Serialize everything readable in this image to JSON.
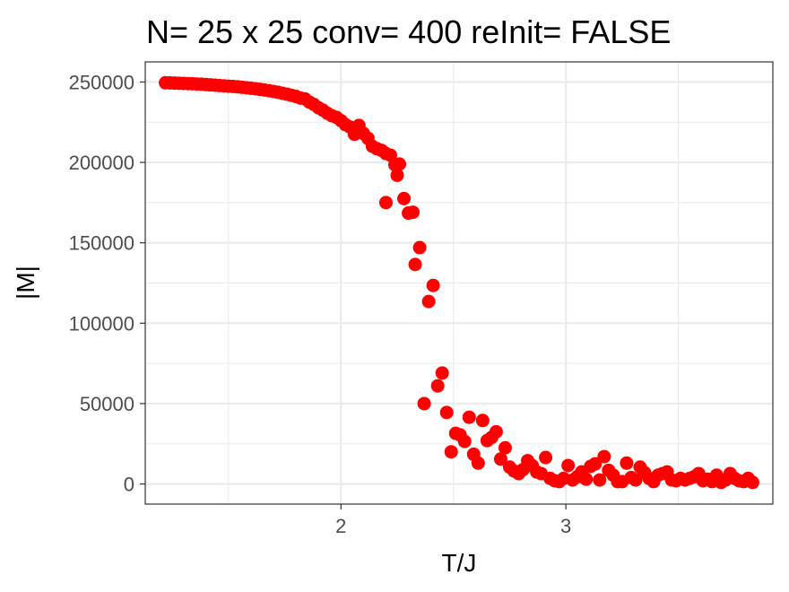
{
  "chart_data": {
    "type": "scatter",
    "title": "N= 25 x 25  conv= 400  reInit= FALSE",
    "xlabel": "T/J",
    "ylabel": "|M|",
    "xlim": [
      1.13,
      3.92
    ],
    "ylim": [
      -12500,
      262500
    ],
    "x_ticks": [
      2,
      3
    ],
    "x_tick_labels": [
      "2",
      "3"
    ],
    "x_minor_ticks": [
      1.5,
      2.5,
      3.5
    ],
    "y_ticks": [
      0,
      50000,
      100000,
      150000,
      200000,
      250000
    ],
    "y_tick_labels": [
      "0",
      "50000",
      "100000",
      "150000",
      "200000",
      "250000"
    ],
    "y_minor_ticks": [
      25000,
      75000,
      125000,
      175000,
      225000
    ],
    "grid": true,
    "legend": "none",
    "point_color": "#ff0000",
    "series": [
      {
        "points": [
          [
            1.22,
            249500
          ],
          [
            1.24,
            249400
          ],
          [
            1.26,
            249300
          ],
          [
            1.28,
            249200
          ],
          [
            1.3,
            249100
          ],
          [
            1.32,
            249000
          ],
          [
            1.34,
            248900
          ],
          [
            1.36,
            248700
          ],
          [
            1.38,
            248600
          ],
          [
            1.4,
            248400
          ],
          [
            1.42,
            248200
          ],
          [
            1.44,
            248000
          ],
          [
            1.46,
            247800
          ],
          [
            1.48,
            247600
          ],
          [
            1.5,
            247400
          ],
          [
            1.52,
            247200
          ],
          [
            1.54,
            247000
          ],
          [
            1.56,
            246700
          ],
          [
            1.58,
            246400
          ],
          [
            1.6,
            246100
          ],
          [
            1.62,
            245800
          ],
          [
            1.64,
            245400
          ],
          [
            1.66,
            245000
          ],
          [
            1.68,
            244600
          ],
          [
            1.7,
            244100
          ],
          [
            1.72,
            243600
          ],
          [
            1.74,
            243000
          ],
          [
            1.76,
            242400
          ],
          [
            1.78,
            241700
          ],
          [
            1.8,
            241000
          ],
          [
            1.82,
            240000
          ],
          [
            1.84,
            239500
          ],
          [
            1.86,
            237500
          ],
          [
            1.88,
            236000
          ],
          [
            1.9,
            234000
          ],
          [
            1.92,
            232500
          ],
          [
            1.94,
            230500
          ],
          [
            1.96,
            229000
          ],
          [
            1.98,
            228000
          ],
          [
            2.0,
            226000
          ],
          [
            2.02,
            223500
          ],
          [
            2.04,
            222000
          ],
          [
            2.06,
            217500
          ],
          [
            2.08,
            223000
          ],
          [
            2.1,
            218000
          ],
          [
            2.12,
            215000
          ],
          [
            2.14,
            210000
          ],
          [
            2.16,
            208500
          ],
          [
            2.18,
            207500
          ],
          [
            2.2,
            205500
          ],
          [
            2.2,
            175000
          ],
          [
            2.22,
            204500
          ],
          [
            2.24,
            198500
          ],
          [
            2.25,
            192000
          ],
          [
            2.26,
            199000
          ],
          [
            2.28,
            177500
          ],
          [
            2.3,
            168500
          ],
          [
            2.32,
            169000
          ],
          [
            2.33,
            136500
          ],
          [
            2.35,
            147000
          ],
          [
            2.37,
            50000
          ],
          [
            2.39,
            113500
          ],
          [
            2.41,
            123500
          ],
          [
            2.43,
            61000
          ],
          [
            2.45,
            69000
          ],
          [
            2.47,
            44500
          ],
          [
            2.49,
            20000
          ],
          [
            2.51,
            31500
          ],
          [
            2.53,
            30500
          ],
          [
            2.55,
            26500
          ],
          [
            2.57,
            41500
          ],
          [
            2.59,
            18500
          ],
          [
            2.61,
            13000
          ],
          [
            2.63,
            39500
          ],
          [
            2.65,
            27000
          ],
          [
            2.67,
            29000
          ],
          [
            2.69,
            32500
          ],
          [
            2.71,
            15500
          ],
          [
            2.73,
            22500
          ],
          [
            2.75,
            10500
          ],
          [
            2.77,
            8000
          ],
          [
            2.79,
            6500
          ],
          [
            2.81,
            9000
          ],
          [
            2.83,
            14500
          ],
          [
            2.85,
            11500
          ],
          [
            2.87,
            7500
          ],
          [
            2.89,
            6500
          ],
          [
            2.91,
            16500
          ],
          [
            2.93,
            3500
          ],
          [
            2.95,
            2000
          ],
          [
            2.97,
            1500
          ],
          [
            2.99,
            3500
          ],
          [
            3.01,
            11500
          ],
          [
            3.03,
            2500
          ],
          [
            3.05,
            4500
          ],
          [
            3.07,
            7500
          ],
          [
            3.09,
            3000
          ],
          [
            3.11,
            11000
          ],
          [
            3.13,
            12500
          ],
          [
            3.15,
            2500
          ],
          [
            3.17,
            17000
          ],
          [
            3.19,
            8500
          ],
          [
            3.21,
            5500
          ],
          [
            3.23,
            1500
          ],
          [
            3.25,
            1500
          ],
          [
            3.27,
            13000
          ],
          [
            3.29,
            4000
          ],
          [
            3.31,
            2500
          ],
          [
            3.33,
            10500
          ],
          [
            3.35,
            7000
          ],
          [
            3.37,
            3500
          ],
          [
            3.39,
            1500
          ],
          [
            3.41,
            5500
          ],
          [
            3.43,
            6500
          ],
          [
            3.45,
            7500
          ],
          [
            3.47,
            2500
          ],
          [
            3.49,
            2000
          ],
          [
            3.51,
            3500
          ],
          [
            3.53,
            2500
          ],
          [
            3.55,
            3500
          ],
          [
            3.57,
            4500
          ],
          [
            3.59,
            6500
          ],
          [
            3.61,
            2000
          ],
          [
            3.63,
            3000
          ],
          [
            3.65,
            1500
          ],
          [
            3.67,
            5500
          ],
          [
            3.69,
            1000
          ],
          [
            3.71,
            2500
          ],
          [
            3.73,
            6500
          ],
          [
            3.75,
            3500
          ],
          [
            3.77,
            2000
          ],
          [
            3.79,
            1500
          ],
          [
            3.81,
            3500
          ],
          [
            3.83,
            1000
          ]
        ]
      }
    ]
  }
}
